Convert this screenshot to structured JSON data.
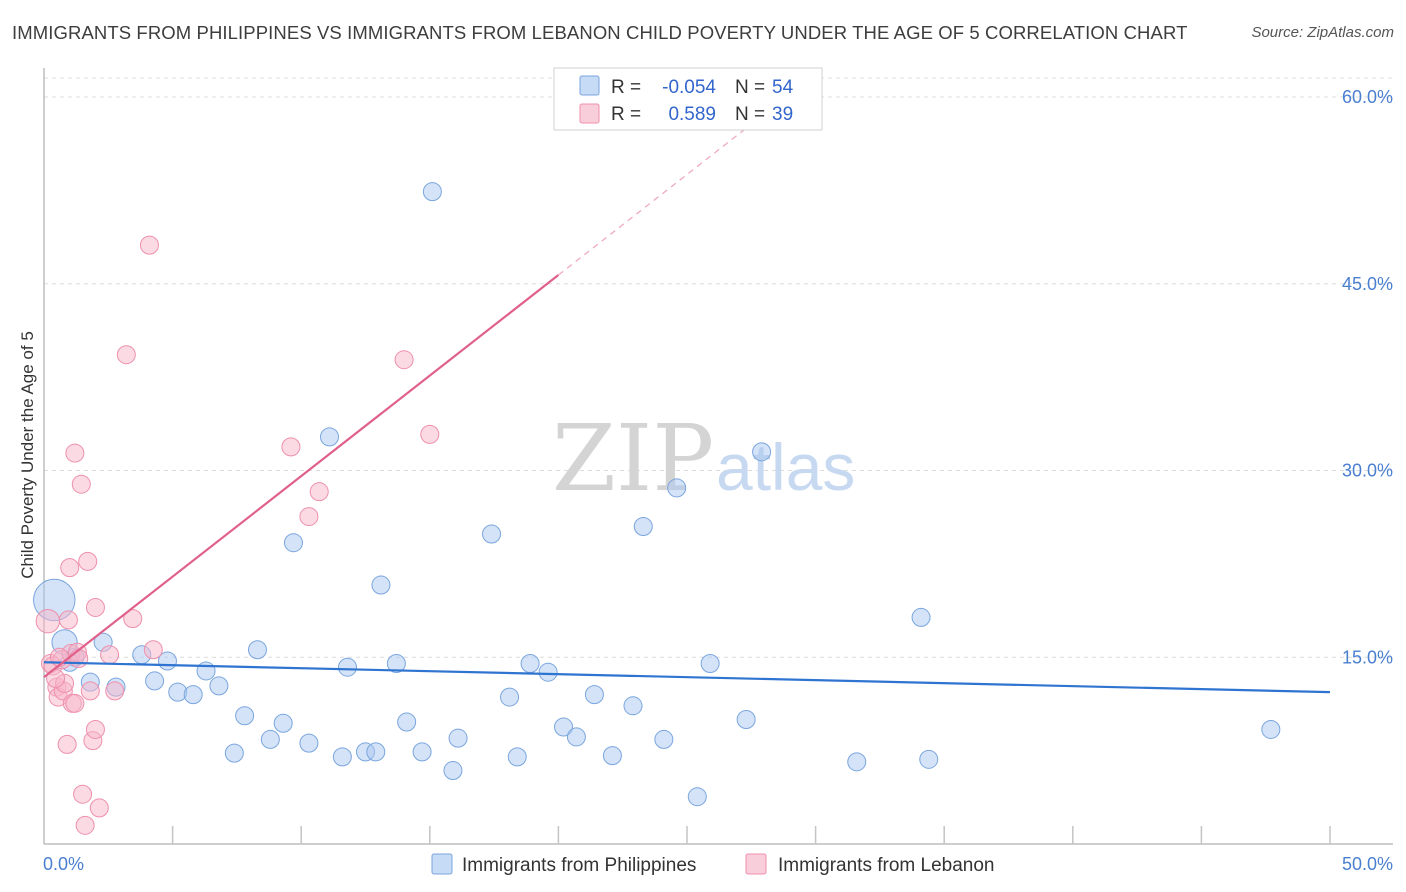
{
  "title": "IMMIGRANTS FROM PHILIPPINES VS IMMIGRANTS FROM LEBANON CHILD POVERTY UNDER THE AGE OF 5 CORRELATION CHART",
  "source": "Source: ZipAtlas.com",
  "watermark": {
    "zip": "ZIP",
    "atlas": "atlas"
  },
  "legend": {
    "r_label": "R =",
    "n_label": "N =",
    "rows": [
      {
        "r": "-0.054",
        "n": "54"
      },
      {
        "r": "0.589",
        "n": "39"
      }
    ]
  },
  "colors": {
    "philippines_fill": "#aac8f0",
    "philippines_stroke": "#7aa6de",
    "philippines_line": "#2f74d0",
    "lebanon_fill": "#f7b6c9",
    "lebanon_stroke": "#ee90ac",
    "lebanon_line": "#e0608c",
    "grid": "#dcdcdc",
    "tick_label": "#4a7fd0"
  },
  "chart_data": {
    "type": "scatter",
    "title": "IMMIGRANTS FROM PHILIPPINES VS IMMIGRANTS FROM LEBANON CHILD POVERTY UNDER THE AGE OF 5 CORRELATION CHART",
    "xlabel": "",
    "ylabel": "Child Poverty Under the Age of 5",
    "xlim": [
      0,
      50
    ],
    "ylim": [
      0,
      60
    ],
    "x_tick_labels": [
      "0.0%",
      "50.0%"
    ],
    "y_ticks": [
      15,
      30,
      45,
      60
    ],
    "y_tick_labels": [
      "15.0%",
      "30.0%",
      "45.0%",
      "60.0%"
    ],
    "grid": true,
    "legend_position": "top-center",
    "series": [
      {
        "name": "Immigrants from Philippines",
        "R": -0.054,
        "N": 54,
        "trend": {
          "x": [
            0,
            50
          ],
          "y": [
            14.6,
            12.2
          ],
          "style": "solid"
        },
        "points": [
          [
            0.4,
            19.6,
            2.3
          ],
          [
            0.8,
            16.2,
            1.4
          ],
          [
            1.2,
            15.0,
            1.0
          ],
          [
            1.8,
            13.0,
            1.0
          ],
          [
            2.3,
            16.2,
            1.0
          ],
          [
            2.8,
            12.6,
            1.0
          ],
          [
            3.8,
            15.2,
            1.0
          ],
          [
            4.3,
            13.1,
            1.0
          ],
          [
            4.8,
            14.7,
            1.0
          ],
          [
            5.2,
            12.2,
            1.0
          ],
          [
            5.8,
            12.0,
            1.0
          ],
          [
            6.3,
            13.9,
            1.0
          ],
          [
            6.8,
            12.7,
            1.0
          ],
          [
            7.4,
            7.3,
            1.0
          ],
          [
            7.8,
            10.3,
            1.0
          ],
          [
            8.3,
            15.6,
            1.0
          ],
          [
            8.8,
            8.4,
            1.0
          ],
          [
            9.3,
            9.7,
            1.0
          ],
          [
            9.7,
            24.2,
            1.0
          ],
          [
            10.3,
            8.1,
            1.0
          ],
          [
            11.1,
            32.7,
            1.0
          ],
          [
            11.6,
            7.0,
            1.0
          ],
          [
            11.8,
            14.2,
            1.0
          ],
          [
            12.5,
            7.4,
            1.0
          ],
          [
            12.9,
            7.4,
            1.0
          ],
          [
            13.1,
            20.8,
            1.0
          ],
          [
            13.7,
            14.5,
            1.0
          ],
          [
            14.1,
            9.8,
            1.0
          ],
          [
            14.7,
            7.4,
            1.0
          ],
          [
            15.1,
            52.4,
            1.0
          ],
          [
            15.9,
            5.9,
            1.0
          ],
          [
            16.1,
            8.5,
            1.0
          ],
          [
            17.4,
            24.9,
            1.0
          ],
          [
            18.1,
            11.8,
            1.0
          ],
          [
            18.4,
            7.0,
            1.0
          ],
          [
            18.9,
            14.5,
            1.0
          ],
          [
            19.6,
            13.8,
            1.0
          ],
          [
            20.2,
            9.4,
            1.0
          ],
          [
            20.7,
            8.6,
            1.0
          ],
          [
            21.4,
            12.0,
            1.0
          ],
          [
            22.1,
            7.1,
            1.0
          ],
          [
            22.9,
            11.1,
            1.0
          ],
          [
            23.3,
            25.5,
            1.0
          ],
          [
            24.1,
            8.4,
            1.0
          ],
          [
            24.6,
            28.6,
            1.0
          ],
          [
            25.4,
            3.8,
            1.0
          ],
          [
            25.9,
            14.5,
            1.0
          ],
          [
            27.3,
            10.0,
            1.0
          ],
          [
            27.9,
            31.5,
            1.0
          ],
          [
            31.6,
            6.6,
            1.0
          ],
          [
            34.1,
            18.2,
            1.0
          ],
          [
            34.4,
            6.8,
            1.0
          ],
          [
            47.7,
            9.2,
            1.0
          ],
          [
            1.0,
            14.6,
            1.0
          ]
        ]
      },
      {
        "name": "Immigrants from Lebanon",
        "R": 0.589,
        "N": 39,
        "trend": {
          "x": [
            0,
            20.0
          ],
          "y": [
            13.4,
            45.7
          ],
          "style": "solid",
          "extension_x": [
            20.0,
            28.0
          ],
          "extension_style": "dashed"
        },
        "points": [
          [
            0.15,
            17.9,
            1.3
          ],
          [
            0.25,
            14.5,
            1.0
          ],
          [
            0.35,
            14.3,
            1.0
          ],
          [
            0.5,
            12.6,
            1.0
          ],
          [
            0.55,
            11.8,
            1.0
          ],
          [
            0.7,
            14.8,
            1.0
          ],
          [
            0.75,
            12.3,
            1.0
          ],
          [
            0.8,
            12.9,
            1.0
          ],
          [
            0.9,
            8.0,
            1.0
          ],
          [
            0.95,
            18.0,
            1.0
          ],
          [
            1.0,
            22.2,
            1.0
          ],
          [
            1.05,
            15.3,
            1.0
          ],
          [
            1.1,
            11.3,
            1.0
          ],
          [
            1.2,
            31.4,
            1.0
          ],
          [
            1.2,
            11.3,
            1.0
          ],
          [
            1.3,
            15.4,
            1.0
          ],
          [
            1.45,
            28.9,
            1.0
          ],
          [
            1.5,
            4.0,
            1.0
          ],
          [
            1.6,
            1.5,
            1.0
          ],
          [
            1.7,
            22.7,
            1.0
          ],
          [
            1.8,
            12.3,
            1.0
          ],
          [
            1.9,
            8.3,
            1.0
          ],
          [
            2.0,
            9.2,
            1.0
          ],
          [
            2.0,
            19.0,
            1.0
          ],
          [
            2.15,
            2.9,
            1.0
          ],
          [
            2.55,
            15.2,
            1.0
          ],
          [
            2.75,
            12.3,
            1.0
          ],
          [
            3.2,
            39.3,
            1.0
          ],
          [
            3.45,
            18.1,
            1.0
          ],
          [
            4.1,
            48.1,
            1.0
          ],
          [
            4.25,
            15.6,
            1.0
          ],
          [
            9.6,
            31.9,
            1.0
          ],
          [
            10.3,
            26.3,
            1.0
          ],
          [
            10.7,
            28.3,
            1.0
          ],
          [
            14.0,
            38.9,
            1.0
          ],
          [
            15.0,
            32.9,
            1.0
          ],
          [
            0.6,
            15.0,
            1.0
          ],
          [
            1.35,
            14.9,
            1.0
          ],
          [
            0.45,
            13.3,
            1.0
          ]
        ]
      }
    ]
  },
  "bottom_legend": {
    "items": [
      "Immigrants from Philippines",
      "Immigrants from Lebanon"
    ]
  }
}
